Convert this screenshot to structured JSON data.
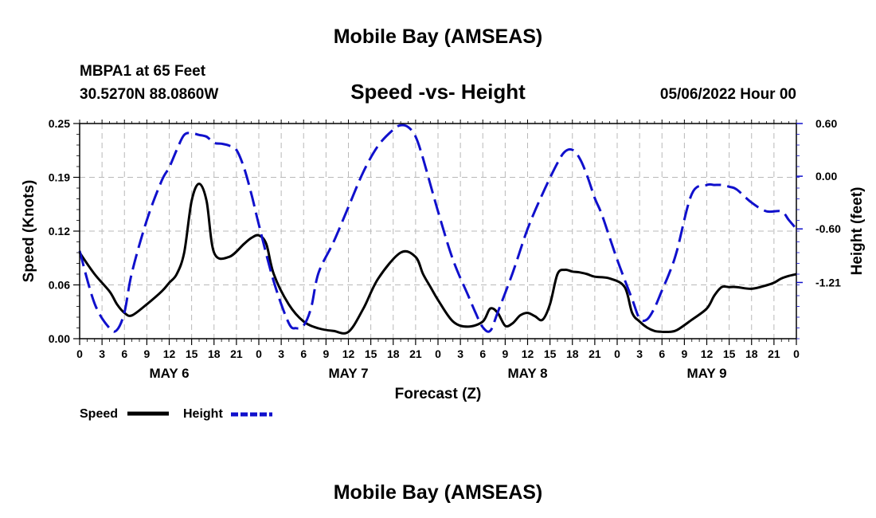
{
  "titles": {
    "main": "Mobile Bay (AMSEAS)",
    "bottom": "Mobile Bay (AMSEAS)"
  },
  "station": {
    "name_line": "MBPA1 at 65 Feet",
    "coords_line": "30.5270N  88.0860W",
    "datetime": "05/06/2022 Hour 00"
  },
  "chart_data": {
    "type": "line",
    "title": "Speed -vs- Height",
    "xlabel": "Forecast (Z)",
    "ylabel": "Speed (Knots)",
    "y2label": "Height (feet)",
    "xlim": [
      0,
      96
    ],
    "ylim": [
      0,
      0.25
    ],
    "y2lim": [
      -1.85,
      0.6
    ],
    "x_tick_labels": [
      "0",
      "3",
      "6",
      "9",
      "12",
      "15",
      "18",
      "21",
      "0",
      "3",
      "6",
      "9",
      "12",
      "15",
      "18",
      "21",
      "0",
      "3",
      "6",
      "9",
      "12",
      "15",
      "18",
      "21",
      "0",
      "3",
      "6",
      "9",
      "12",
      "15",
      "18",
      "21",
      "0"
    ],
    "y_tick_labels": [
      "0.00",
      "0.06",
      "0.12",
      "0.19",
      "0.25"
    ],
    "y_tick_values": [
      0,
      0.0625,
      0.125,
      0.1875,
      0.25
    ],
    "y2_tick_labels": [
      "-1.21",
      "-0.60",
      "0.00",
      "0.60"
    ],
    "y2_tick_values": [
      -1.21,
      -0.6,
      0.0,
      0.6
    ],
    "day_labels": [
      "MAY 6",
      "MAY 7",
      "MAY 8",
      "MAY 9"
    ],
    "day_centers": [
      12,
      36,
      60,
      84
    ],
    "grid": true,
    "legend": [
      {
        "name": "Speed",
        "color": "#000000",
        "dash": "solid"
      },
      {
        "name": "Height",
        "color": "#1010cc",
        "dash": "dashed"
      }
    ],
    "series": [
      {
        "name": "Speed",
        "axis": "left",
        "color": "#000000",
        "x": [
          0,
          2,
          4,
          5,
          6,
          7,
          9,
          11,
          12,
          13,
          14,
          15,
          16,
          17,
          18,
          20,
          22,
          23,
          24,
          25,
          26,
          28,
          30,
          32,
          34,
          36,
          38,
          40,
          43,
          45,
          46,
          47,
          48,
          50,
          52,
          54,
          55,
          56,
          57,
          58,
          59,
          60,
          61,
          62,
          63,
          64,
          65,
          66,
          67,
          68,
          69,
          71,
          73,
          74,
          75,
          76,
          77,
          78,
          79,
          80,
          82,
          84,
          85,
          86,
          87,
          88,
          90,
          92,
          93,
          94,
          95,
          96
        ],
        "values": [
          0.1,
          0.075,
          0.055,
          0.04,
          0.03,
          0.027,
          0.04,
          0.055,
          0.065,
          0.075,
          0.1,
          0.16,
          0.18,
          0.16,
          0.1,
          0.095,
          0.11,
          0.117,
          0.12,
          0.11,
          0.075,
          0.04,
          0.02,
          0.012,
          0.009,
          0.008,
          0.035,
          0.07,
          0.1,
          0.095,
          0.075,
          0.06,
          0.045,
          0.02,
          0.014,
          0.02,
          0.035,
          0.03,
          0.015,
          0.018,
          0.027,
          0.03,
          0.026,
          0.022,
          0.04,
          0.075,
          0.08,
          0.078,
          0.077,
          0.075,
          0.072,
          0.07,
          0.06,
          0.03,
          0.02,
          0.013,
          0.009,
          0.008,
          0.008,
          0.01,
          0.022,
          0.035,
          0.05,
          0.06,
          0.06,
          0.06,
          0.058,
          0.062,
          0.065,
          0.07,
          0.073,
          0.075
        ]
      },
      {
        "name": "Height",
        "axis": "right",
        "color": "#1010cc",
        "x": [
          0,
          2,
          4,
          5,
          6,
          7,
          9,
          11,
          12,
          13,
          14,
          15,
          16,
          17,
          18,
          19,
          20,
          21,
          22,
          23,
          24,
          26,
          28,
          29,
          30,
          31,
          32,
          34,
          36,
          38,
          40,
          42,
          43,
          44,
          45,
          46,
          48,
          50,
          52,
          53,
          54,
          55,
          56,
          58,
          60,
          62,
          64,
          65,
          66,
          67,
          68,
          69,
          70,
          72,
          74,
          75,
          76,
          77,
          78,
          79,
          80,
          82,
          84,
          85,
          86,
          87,
          88,
          90,
          92,
          94,
          95,
          96
        ],
        "values": [
          -0.85,
          -1.45,
          -1.73,
          -1.75,
          -1.55,
          -1.1,
          -0.5,
          -0.05,
          0.1,
          0.3,
          0.47,
          0.49,
          0.47,
          0.45,
          0.38,
          0.37,
          0.35,
          0.3,
          0.1,
          -0.2,
          -0.55,
          -1.2,
          -1.67,
          -1.73,
          -1.7,
          -1.5,
          -1.1,
          -0.75,
          -0.35,
          0.05,
          0.35,
          0.53,
          0.58,
          0.56,
          0.45,
          0.2,
          -0.4,
          -0.95,
          -1.35,
          -1.55,
          -1.72,
          -1.76,
          -1.55,
          -1.1,
          -0.6,
          -0.2,
          0.15,
          0.28,
          0.3,
          0.2,
          0.0,
          -0.25,
          -0.45,
          -0.95,
          -1.4,
          -1.62,
          -1.63,
          -1.5,
          -1.3,
          -1.1,
          -0.85,
          -0.2,
          -0.1,
          -0.1,
          -0.1,
          -0.12,
          -0.15,
          -0.3,
          -0.4,
          -0.4,
          -0.5,
          -0.6
        ]
      }
    ]
  }
}
